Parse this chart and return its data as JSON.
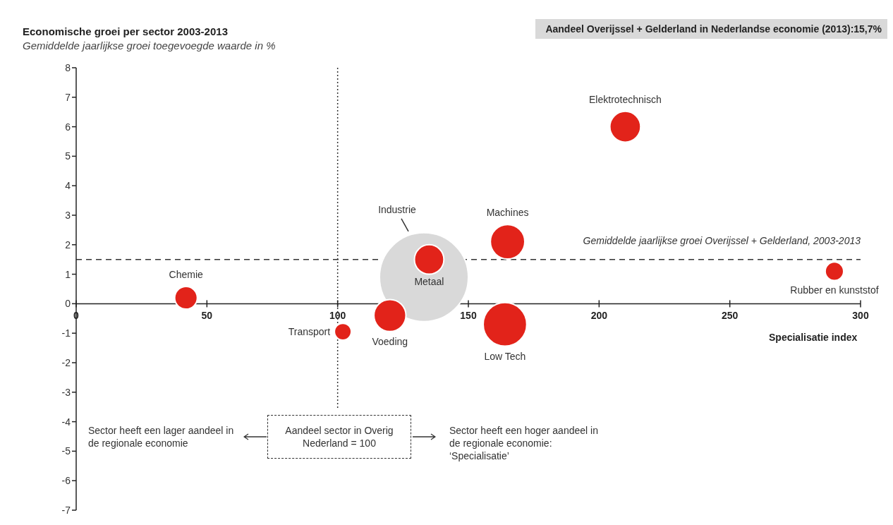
{
  "chart_data": {
    "type": "bubble",
    "title": "Economische groei per sector 2003-2013",
    "subtitle": "Gemiddelde jaarlijkse groei toegevoegde waarde in %",
    "xlabel": "Specialisatie index",
    "series": [
      {
        "name": "Industrie",
        "color": "#d9d9d9",
        "x": [
          133
        ],
        "values": [
          0.9
        ],
        "sizes": [
          1
        ]
      },
      {
        "name": "Chemie",
        "color": "#e2231a",
        "x": [
          42
        ],
        "values": [
          0.2
        ],
        "sizes": [
          0.065
        ]
      },
      {
        "name": "Transport",
        "color": "#e2231a",
        "x": [
          102
        ],
        "values": [
          -0.95
        ],
        "sizes": [
          0.036
        ]
      },
      {
        "name": "Voeding",
        "color": "#e2231a",
        "x": [
          120
        ],
        "values": [
          -0.4
        ],
        "sizes": [
          0.13
        ]
      },
      {
        "name": "Metaal",
        "color": "#e2231a",
        "x": [
          135
        ],
        "values": [
          1.5
        ],
        "sizes": [
          0.11
        ]
      },
      {
        "name": "Low Tech",
        "color": "#e2231a",
        "x": [
          164
        ],
        "values": [
          -0.7
        ],
        "sizes": [
          0.24
        ]
      },
      {
        "name": "Machines",
        "color": "#e2231a",
        "x": [
          165
        ],
        "values": [
          2.1
        ],
        "sizes": [
          0.15
        ]
      },
      {
        "name": "Elektrotechnisch",
        "color": "#e2231a",
        "x": [
          210
        ],
        "values": [
          6
        ],
        "sizes": [
          0.12
        ]
      },
      {
        "name": "Rubber en kunststof",
        "color": "#e2231a",
        "x": [
          290
        ],
        "values": [
          1.1
        ],
        "sizes": [
          0.043
        ]
      }
    ],
    "xlim": [
      0,
      300
    ],
    "xticks": [
      0,
      50,
      100,
      150,
      200,
      250,
      300
    ],
    "ylim": [
      -7,
      8
    ],
    "yticks": [
      -7,
      -6,
      -5,
      -4,
      -3,
      -2,
      -1,
      0,
      1,
      2,
      3,
      4,
      5,
      6,
      7,
      8
    ],
    "ref_lines": [
      {
        "axis": "y",
        "value": 1.5,
        "label": "Gemiddelde jaarlijkse groei Overijssel + Gelderland, 2003-2013",
        "line_style": "dashed",
        "color": "#333333"
      },
      {
        "axis": "x",
        "value": 100,
        "line_style": "dotted",
        "color": "#333333"
      }
    ],
    "annotations": [
      "Aandeel Overijssel + Gelderland in Nederlandse economie (2013):15,7%",
      "Sector heeft een lager aandeel in de regionale economie",
      "Aandeel sector in Overig Nederland = 100",
      "Sector heeft een hoger aandeel in de regionale economie: ‘Specialisatie’"
    ]
  }
}
